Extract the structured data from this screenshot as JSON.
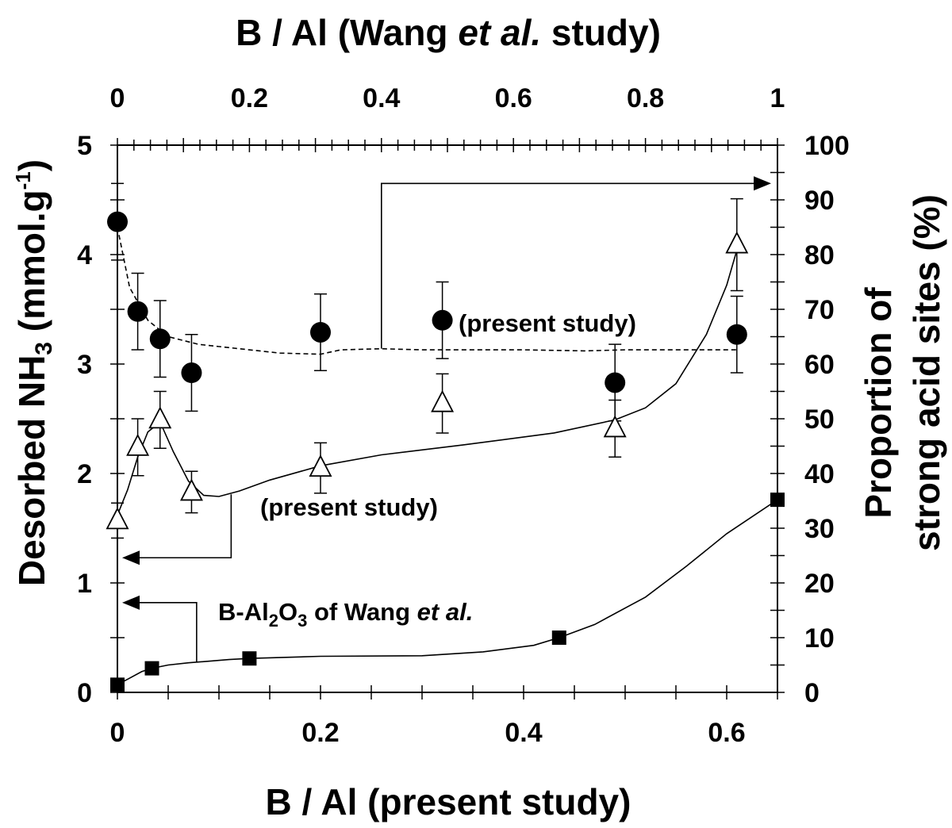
{
  "chart_data": {
    "type": "scatter",
    "top_axis": {
      "title_prefix": "B / Al (Wang ",
      "title_italic": "et al.",
      "title_suffix": " study)",
      "range": [
        0,
        1
      ],
      "ticks": [
        {
          "value": 0,
          "label": "0"
        },
        {
          "value": 0.2,
          "label": "0.2"
        },
        {
          "value": 0.4,
          "label": "0.4"
        },
        {
          "value": 0.6,
          "label": "0.6"
        },
        {
          "value": 0.8,
          "label": "0.8"
        },
        {
          "value": 1,
          "label": "1"
        }
      ],
      "minor_step": 0.025
    },
    "bottom_axis": {
      "title": "B / Al (present study)",
      "range": [
        0,
        0.65
      ],
      "ticks": [
        {
          "value": 0,
          "label": "0"
        },
        {
          "value": 0.2,
          "label": "0.2"
        },
        {
          "value": 0.4,
          "label": "0.4"
        },
        {
          "value": 0.6,
          "label": "0.6"
        }
      ],
      "minor_step": 0.05
    },
    "left_axis": {
      "title_main": "Desorbed NH",
      "title_sub": "3",
      "title_unit": " (mmol.g",
      "title_sup": "-1",
      "title_close": ")",
      "range": [
        0,
        5
      ],
      "ticks": [
        {
          "value": 0,
          "label": "0"
        },
        {
          "value": 1,
          "label": "1"
        },
        {
          "value": 2,
          "label": "2"
        },
        {
          "value": 3,
          "label": "3"
        },
        {
          "value": 4,
          "label": "4"
        },
        {
          "value": 5,
          "label": "5"
        }
      ],
      "minor_step": 0.5
    },
    "right_axis": {
      "title_line1": "Proportion of",
      "title_line2": "strong acid sites (%)",
      "range": [
        0,
        100
      ],
      "ticks": [
        {
          "value": 0,
          "label": "0"
        },
        {
          "value": 10,
          "label": "10"
        },
        {
          "value": 20,
          "label": "20"
        },
        {
          "value": 30,
          "label": "30"
        },
        {
          "value": 40,
          "label": "40"
        },
        {
          "value": 50,
          "label": "50"
        },
        {
          "value": 60,
          "label": "60"
        },
        {
          "value": 70,
          "label": "70"
        },
        {
          "value": 80,
          "label": "80"
        },
        {
          "value": 90,
          "label": "90"
        },
        {
          "value": 100,
          "label": "100"
        }
      ],
      "minor_step": 5
    },
    "series": [
      {
        "marker": "filled-circle",
        "axis": "right",
        "x": [
          0,
          0.02,
          0.042,
          0.073,
          0.2,
          0.32,
          0.49,
          0.61
        ],
        "y": [
          86,
          69.6,
          64.6,
          58.4,
          65.8,
          68,
          56.6,
          65.4
        ],
        "err": [
          7,
          7,
          7,
          7,
          7,
          7,
          7,
          7
        ],
        "trend_x": [
          0,
          0.012,
          0.03,
          0.05,
          0.08,
          0.12,
          0.16,
          0.2,
          0.22,
          0.26,
          0.3,
          0.4,
          0.46,
          0.5,
          0.56,
          0.61
        ],
        "trend_y": [
          85,
          74,
          68,
          65,
          63.6,
          62.8,
          62,
          61.8,
          62.6,
          62.8,
          62.6,
          62.6,
          62.4,
          62.6,
          62.6,
          62.6
        ]
      },
      {
        "marker": "open-triangle",
        "axis": "left",
        "x": [
          0,
          0.02,
          0.042,
          0.073,
          0.2,
          0.32,
          0.49,
          0.61
        ],
        "y": [
          1.57,
          2.24,
          2.49,
          1.83,
          2.05,
          2.64,
          2.41,
          4.09
        ],
        "err": [
          0.16,
          0.26,
          0.26,
          0.19,
          0.23,
          0.27,
          0.26,
          0.42
        ],
        "trend_x": [
          0,
          0.01,
          0.02,
          0.03,
          0.042,
          0.055,
          0.07,
          0.085,
          0.1,
          0.12,
          0.15,
          0.2,
          0.26,
          0.34,
          0.43,
          0.49,
          0.52,
          0.55,
          0.58,
          0.6,
          0.61
        ],
        "trend_y": [
          1.62,
          1.85,
          2.15,
          2.38,
          2.47,
          2.2,
          1.93,
          1.8,
          1.79,
          1.84,
          1.94,
          2.07,
          2.17,
          2.26,
          2.37,
          2.49,
          2.6,
          2.82,
          3.27,
          3.72,
          4.04
        ]
      },
      {
        "marker": "filled-square",
        "axis": "left",
        "x": [
          0,
          0.034,
          0.13,
          0.435,
          0.65
        ],
        "y": [
          0.07,
          0.22,
          0.31,
          0.5,
          1.76
        ],
        "err": [],
        "trend_x": [
          0,
          0.012,
          0.024,
          0.034,
          0.05,
          0.07,
          0.09,
          0.11,
          0.13,
          0.2,
          0.3,
          0.36,
          0.41,
          0.435,
          0.47,
          0.52,
          0.56,
          0.6,
          0.65
        ],
        "trend_y": [
          0.07,
          0.13,
          0.19,
          0.22,
          0.25,
          0.27,
          0.285,
          0.3,
          0.31,
          0.33,
          0.335,
          0.37,
          0.43,
          0.5,
          0.62,
          0.87,
          1.15,
          1.45,
          1.76
        ]
      }
    ],
    "annotations": {
      "circles_label": "(present study)",
      "triangles_label": "(present study)",
      "squares_label_main": "B-Al",
      "squares_label_sub1": "2",
      "squares_label_mid": "O",
      "squares_label_sub2": "3",
      "squares_label_of": " of Wang ",
      "squares_label_italic": "et al."
    }
  }
}
